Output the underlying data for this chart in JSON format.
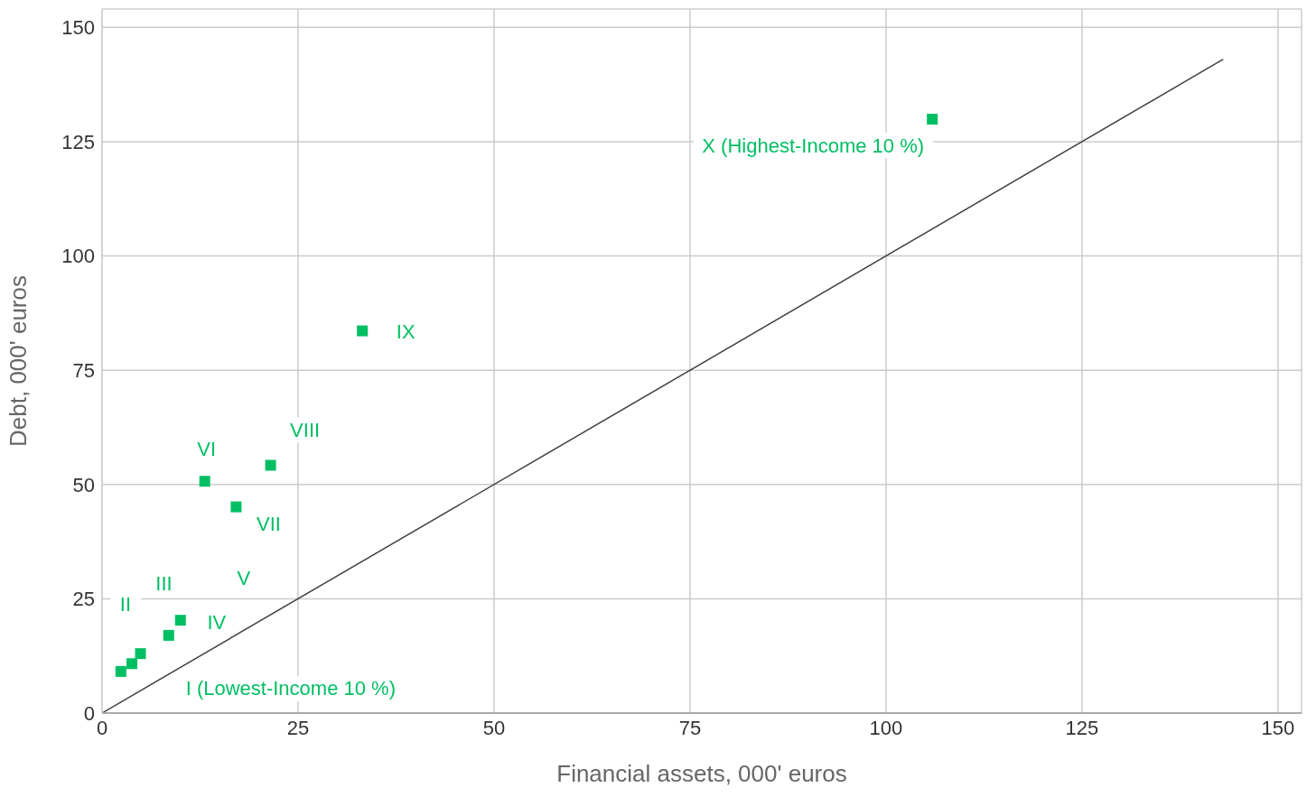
{
  "chart_data": {
    "type": "scatter",
    "xlabel": "Financial assets, 000' euros",
    "ylabel": "Debt, 000' euros",
    "xlim": [
      0,
      153
    ],
    "ylim": [
      0,
      154
    ],
    "xticks": [
      0,
      25,
      50,
      75,
      100,
      125,
      150
    ],
    "yticks": [
      0,
      25,
      50,
      75,
      100,
      125,
      150
    ],
    "grid": true,
    "series": [
      {
        "marker": "square",
        "color": "#00bf63",
        "x": [
          2.4,
          3.8,
          4.9,
          8.5,
          10.0,
          13.1,
          17.1,
          21.5,
          33.2,
          105.9
        ],
        "values": [
          9.1,
          10.8,
          13.0,
          17.0,
          20.3,
          50.7,
          45.1,
          54.2,
          83.6,
          129.9
        ]
      },
      {
        "type": "line",
        "color": "#404040",
        "x": [
          0,
          143
        ],
        "values": [
          0,
          143
        ]
      }
    ],
    "annotations": [
      "I (Lowest-Income 10 %)",
      {
        "text": "II",
        "x": 3.8,
        "y": 10.8
      },
      "III",
      {
        "text": "IV",
        "x": 8.5,
        "y": 17.0
      },
      "V",
      {
        "text": "VI",
        "x": 13.1,
        "y": 50.7
      },
      {
        "text": "VII",
        "x": 17.1,
        "y": 45.1
      },
      {
        "text": "VIII",
        "x": 21.5,
        "y": 54.2
      },
      {
        "text": "IX",
        "x": 33.2,
        "y": 83.6
      },
      {
        "text": "X (Highest-Income 10 %)",
        "x": 105.9,
        "y": 129.9
      }
    ]
  }
}
